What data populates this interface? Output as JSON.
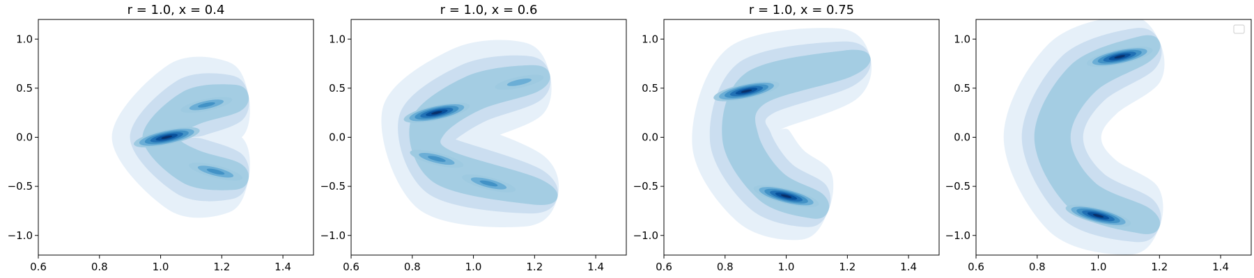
{
  "figure": {
    "colormap": [
      "#f7fbff",
      "#deebf7",
      "#c6dbef",
      "#9ecae1",
      "#6baed6",
      "#4292c6",
      "#2171b5",
      "#08519c",
      "#08306b"
    ],
    "legend": {
      "placement": "upper right",
      "entries": []
    }
  },
  "chart_data": [
    {
      "type": "heatmap",
      "subtype": "kde-contourf",
      "title": "r = 1.0, x = 0.4",
      "xlim": [
        0.6,
        1.5
      ],
      "ylim": [
        -1.2,
        1.2
      ],
      "xticks": [
        0.6,
        0.8,
        1.0,
        1.2,
        1.4
      ],
      "yticks": [
        -1.0,
        -0.5,
        0.0,
        0.5,
        1.0
      ],
      "xtick_labels": [
        "0.6",
        "0.8",
        "1.0",
        "1.2",
        "1.4"
      ],
      "ytick_labels": [
        "−1.0",
        "−0.5",
        "0.0",
        "0.5",
        "1.0"
      ],
      "grid": false,
      "modes": [
        {
          "x": 1.02,
          "y": 0.0,
          "density": 1.0
        },
        {
          "x": 1.15,
          "y": 0.33,
          "density": 0.45
        },
        {
          "x": 1.18,
          "y": -0.35,
          "density": 0.55
        }
      ],
      "ridge": [
        [
          1.25,
          0.4
        ],
        [
          1.1,
          0.3
        ],
        [
          1.0,
          0.0
        ],
        [
          1.1,
          -0.3
        ],
        [
          1.25,
          -0.4
        ]
      ]
    },
    {
      "type": "heatmap",
      "subtype": "kde-contourf",
      "title": "r = 1.0, x = 0.6",
      "xlim": [
        0.6,
        1.5
      ],
      "ylim": [
        -1.2,
        1.2
      ],
      "xticks": [
        0.6,
        0.8,
        1.0,
        1.2,
        1.4
      ],
      "yticks": [
        -1.0,
        -0.5,
        0.0,
        0.5,
        1.0
      ],
      "xtick_labels": [
        "0.6",
        "0.8",
        "1.0",
        "1.2",
        "1.4"
      ],
      "ytick_labels": [
        "−1.0",
        "−0.5",
        "0.0",
        "0.5",
        "1.0"
      ],
      "grid": false,
      "modes": [
        {
          "x": 0.88,
          "y": 0.25,
          "density": 1.0
        },
        {
          "x": 1.15,
          "y": 0.56,
          "density": 0.35
        },
        {
          "x": 0.88,
          "y": -0.22,
          "density": 0.55
        },
        {
          "x": 1.05,
          "y": -0.47,
          "density": 0.55
        }
      ],
      "ridge": [
        [
          1.2,
          0.6
        ],
        [
          1.0,
          0.45
        ],
        [
          0.85,
          0.1
        ],
        [
          0.9,
          -0.3
        ],
        [
          1.2,
          -0.55
        ]
      ]
    },
    {
      "type": "heatmap",
      "subtype": "kde-contourf",
      "title": "r = 1.0, x = 0.75",
      "xlim": [
        0.6,
        1.5
      ],
      "ylim": [
        -1.2,
        1.2
      ],
      "xticks": [
        0.6,
        0.8,
        1.0,
        1.2,
        1.4
      ],
      "yticks": [
        -1.0,
        -0.5,
        0.0,
        0.5,
        1.0
      ],
      "xtick_labels": [
        "0.6",
        "0.8",
        "1.0",
        "1.2",
        "1.4"
      ],
      "ytick_labels": [
        "−1.0",
        "−0.5",
        "0.0",
        "0.5",
        "1.0"
      ],
      "grid": false,
      "modes": [
        {
          "x": 0.87,
          "y": 0.47,
          "density": 1.0
        },
        {
          "x": 1.0,
          "y": -0.6,
          "density": 1.0
        }
      ],
      "ridge": [
        [
          1.2,
          0.75
        ],
        [
          0.9,
          0.5
        ],
        [
          0.85,
          0.0
        ],
        [
          0.95,
          -0.5
        ],
        [
          1.1,
          -0.7
        ]
      ]
    },
    {
      "type": "heatmap",
      "subtype": "kde-contourf",
      "title": "",
      "xlim": [
        0.6,
        1.5
      ],
      "ylim": [
        -1.2,
        1.2
      ],
      "xticks": [
        0.6,
        0.8,
        1.0,
        1.2,
        1.4
      ],
      "yticks": [
        -1.0,
        -0.5,
        0.0,
        0.5,
        1.0
      ],
      "xtick_labels": [
        "0.6",
        "0.8",
        "1.0",
        "1.2",
        "1.4"
      ],
      "ytick_labels": [
        "−1.0",
        "−0.5",
        "0.0",
        "0.5",
        "1.0"
      ],
      "grid": false,
      "modes": [
        {
          "x": 1.07,
          "y": 0.82,
          "density": 1.0
        },
        {
          "x": 1.0,
          "y": -0.8,
          "density": 1.0
        }
      ],
      "ridge": [
        [
          1.15,
          0.9
        ],
        [
          0.95,
          0.6
        ],
        [
          0.85,
          0.0
        ],
        [
          0.95,
          -0.6
        ],
        [
          1.15,
          -0.85
        ]
      ]
    }
  ]
}
